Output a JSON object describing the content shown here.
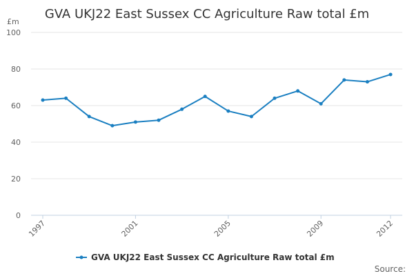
{
  "chart_data": {
    "type": "line",
    "title": "GVA UKJ22 East Sussex CC Agriculture Raw total £m",
    "ylabel": "£m",
    "xlabel": "",
    "ylim": [
      0,
      100
    ],
    "yticks": [
      0,
      20,
      40,
      60,
      80,
      100
    ],
    "xticks": [
      1997,
      2001,
      2005,
      2009,
      2012
    ],
    "grid": true,
    "legend_position": "bottom",
    "series": [
      {
        "name": "GVA UKJ22 East Sussex CC Agriculture Raw total £m",
        "color": "#1a7fc1",
        "x": [
          1997,
          1998,
          1999,
          2000,
          2001,
          2002,
          2003,
          2004,
          2005,
          2006,
          2007,
          2008,
          2009,
          2010,
          2011,
          2012
        ],
        "values": [
          63,
          64,
          54,
          49,
          51,
          52,
          58,
          65,
          57,
          54,
          64,
          68,
          61,
          74,
          73,
          77
        ]
      }
    ],
    "source_label": "Source:"
  }
}
